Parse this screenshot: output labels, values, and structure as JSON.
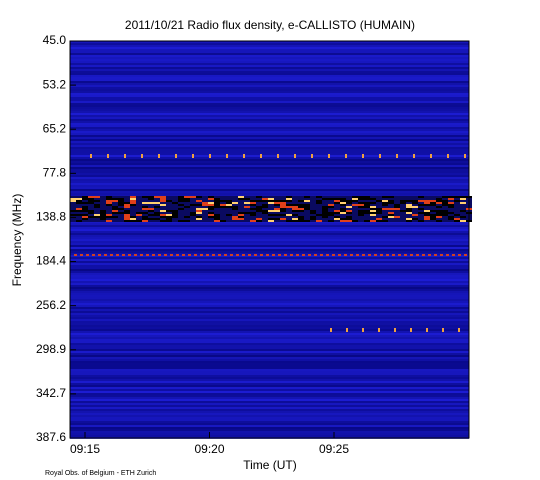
{
  "chart_data": {
    "type": "spectrogram",
    "title": "2011/10/21  Radio flux density, e-CALLISTO (HUMAIN)",
    "x_label": "Time (UT)",
    "y_label": "Frequency (MHz)",
    "xticks": [
      "09:15",
      "09:20",
      "09:25"
    ],
    "ylim": [
      45,
      387.6
    ],
    "yticks": [
      {
        "value": 45,
        "label": "45.0"
      },
      53.2,
      65.2,
      77.8,
      138.8,
      184.4,
      256.2,
      298.9,
      342.7,
      387.6
    ],
    "credit": "Royal Obs. of Belgium - ETH Zurich"
  }
}
